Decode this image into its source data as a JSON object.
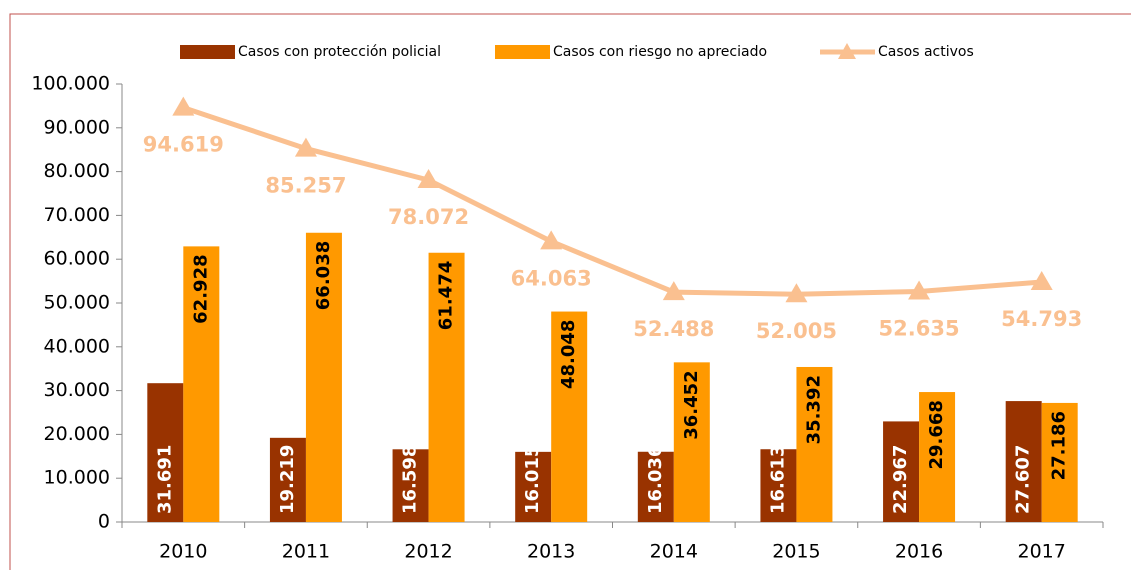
{
  "chart_data": {
    "type": "bar-line",
    "categories": [
      "2010",
      "2011",
      "2012",
      "2013",
      "2014",
      "2015",
      "2016",
      "2017"
    ],
    "series": [
      {
        "name": "Casos con protección policial",
        "type": "bar",
        "color": "#993300",
        "values": [
          31691,
          19219,
          16598,
          16015,
          16036,
          16613,
          22967,
          27607
        ],
        "value_labels": [
          "31.691",
          "19.219",
          "16.598",
          "16.015",
          "16.036",
          "16.613",
          "22.967",
          "27.607"
        ]
      },
      {
        "name": "Casos con riesgo no apreciado",
        "type": "bar",
        "color": "#ff9900",
        "values": [
          62928,
          66038,
          61474,
          48048,
          36452,
          35392,
          29668,
          27186
        ],
        "value_labels": [
          "62.928",
          "66.038",
          "61.474",
          "48.048",
          "36.452",
          "35.392",
          "29.668",
          "27.186"
        ]
      },
      {
        "name": "Casos activos",
        "type": "line",
        "color": "#fac090",
        "values": [
          94619,
          85257,
          78072,
          64063,
          52488,
          52005,
          52635,
          54793
        ],
        "value_labels": [
          "94.619",
          "85.257",
          "78.072",
          "64.063",
          "52.488",
          "52.005",
          "52.635",
          "54.793"
        ]
      }
    ],
    "ylim": [
      0,
      100000
    ],
    "yticks": [
      0,
      {
        "value": 10000,
        "label": "10.000"
      },
      {
        "value": 20000,
        "label": "20.000"
      },
      {
        "value": 30000,
        "label": "30.000"
      },
      {
        "value": 40000,
        "label": "40.000"
      },
      {
        "value": 50000,
        "label": "50.000"
      },
      {
        "value": 60000,
        "label": "60.000"
      },
      {
        "value": 70000,
        "label": "70.000"
      },
      {
        "value": 80000,
        "label": "80.000"
      },
      {
        "value": 90000,
        "label": "90.000"
      },
      {
        "value": 100000,
        "label": "100.000"
      }
    ],
    "grid": false,
    "legend": "top"
  }
}
